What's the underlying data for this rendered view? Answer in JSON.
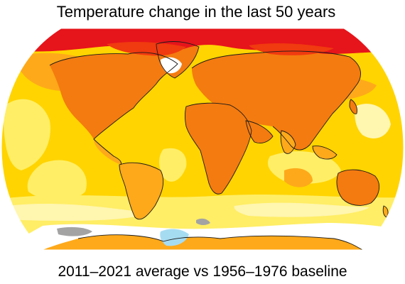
{
  "title": "Temperature change in the last 50 years",
  "caption": "2011–2021 average vs 1956–1976 baseline",
  "palette": {
    "ocean_base": "#ffd400",
    "light_yellow": "#ffee66",
    "pale_yellow": "#fff6b0",
    "orange": "#fea91a",
    "dark_orange": "#f47b0f",
    "red_orange": "#f03a0f",
    "red": "#e6141b",
    "pale_blue": "#a6dcf2",
    "no_data_gray": "#a3a3a3",
    "white": "#ffffff",
    "coastline": "#1a1a1a"
  }
}
